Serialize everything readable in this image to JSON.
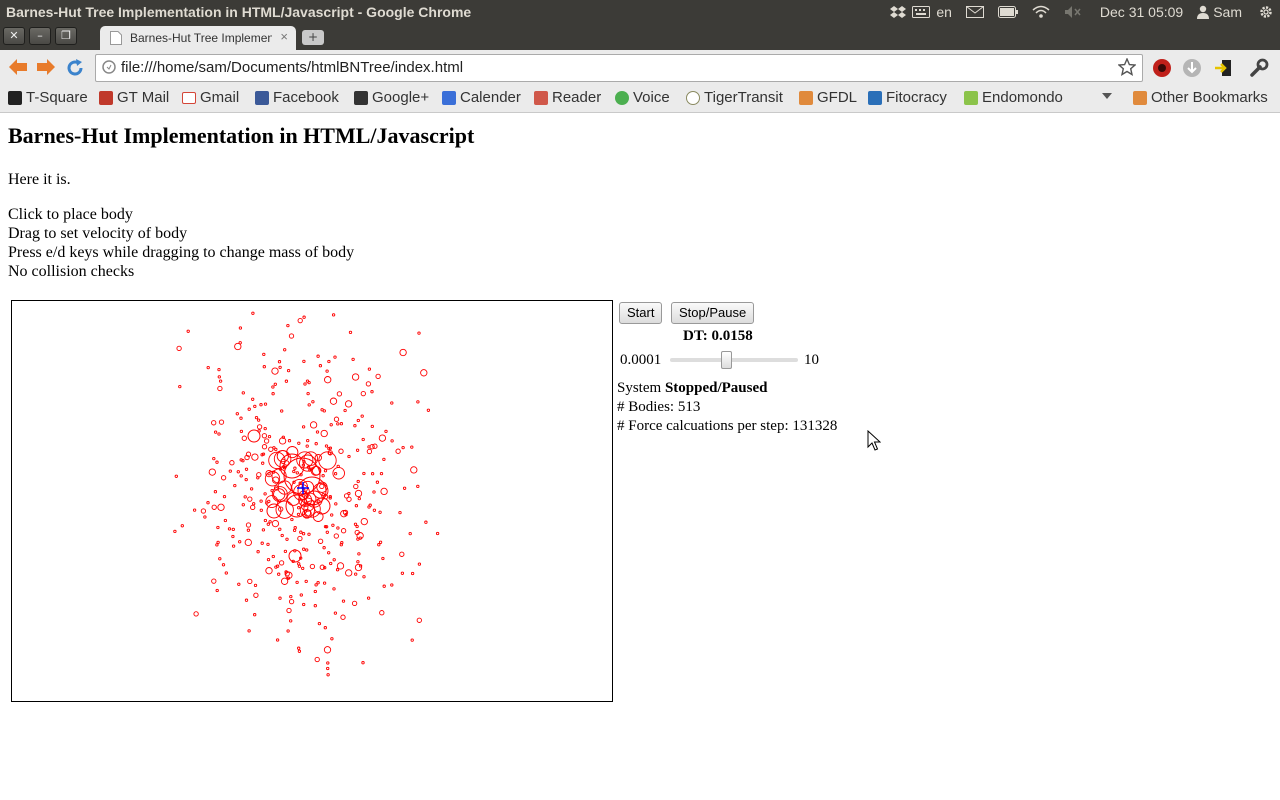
{
  "system_bar": {
    "window_title": "Barnes-Hut Tree Implementation in HTML/Javascript - Google Chrome",
    "keyboard_layout": "en",
    "clock": "Dec 31 05:09",
    "user": "Sam"
  },
  "browser": {
    "tab_title": "Barnes-Hut Tree Implemen",
    "url": "file:///home/sam/Documents/htmlBNTree/index.html",
    "bookmarks": [
      {
        "label": "T-Square",
        "icon": "tsquare-icon",
        "color": "#222222"
      },
      {
        "label": "GT Mail",
        "icon": "gtmail-icon",
        "color": "#c0392b"
      },
      {
        "label": "Gmail",
        "icon": "gmail-icon",
        "color": "#d44638"
      },
      {
        "label": "Facebook",
        "icon": "facebook-icon",
        "color": "#3b5998"
      },
      {
        "label": "Google+",
        "icon": "googleplus-icon",
        "color": "#333333"
      },
      {
        "label": "Calender",
        "icon": "calendar-icon",
        "color": "#3a6fd8"
      },
      {
        "label": "Reader",
        "icon": "reader-icon",
        "color": "#d0584a"
      },
      {
        "label": "Voice",
        "icon": "voice-icon",
        "color": "#4caf50"
      },
      {
        "label": "TigerTransit",
        "icon": "tigertransit-icon",
        "color": "#8a8a60"
      },
      {
        "label": "GFDL",
        "icon": "folder-icon",
        "color": "#e08a3c"
      },
      {
        "label": "Fitocracy",
        "icon": "fitocracy-icon",
        "color": "#2a6fb8"
      },
      {
        "label": "Endomondo",
        "icon": "endomondo-icon",
        "color": "#8bc34a"
      }
    ],
    "other_bookmarks": "Other Bookmarks"
  },
  "page": {
    "title": "Barnes-Hut Implementation in HTML/Javascript",
    "intro": "Here it is.",
    "instructions": [
      "Click to place body",
      "Drag to set velocity of body",
      "Press e/d keys while dragging to change mass of body",
      "No collision checks"
    ],
    "start_label": "Start",
    "stop_label": "Stop/Pause",
    "dt_label": "DT: 0.0158",
    "slider_min": "0.0001",
    "slider_max": "10",
    "slider_fraction": 0.44,
    "status_prefix": "System",
    "status_value": "Stopped/Paused",
    "bodies": "# Bodies: 513",
    "force_calcs": "# Force calcuations per step: 131328"
  },
  "colors": {
    "body_color": "#ff0000",
    "center_mark": "#0000ff",
    "chrome_dark": "#3c3b37"
  }
}
